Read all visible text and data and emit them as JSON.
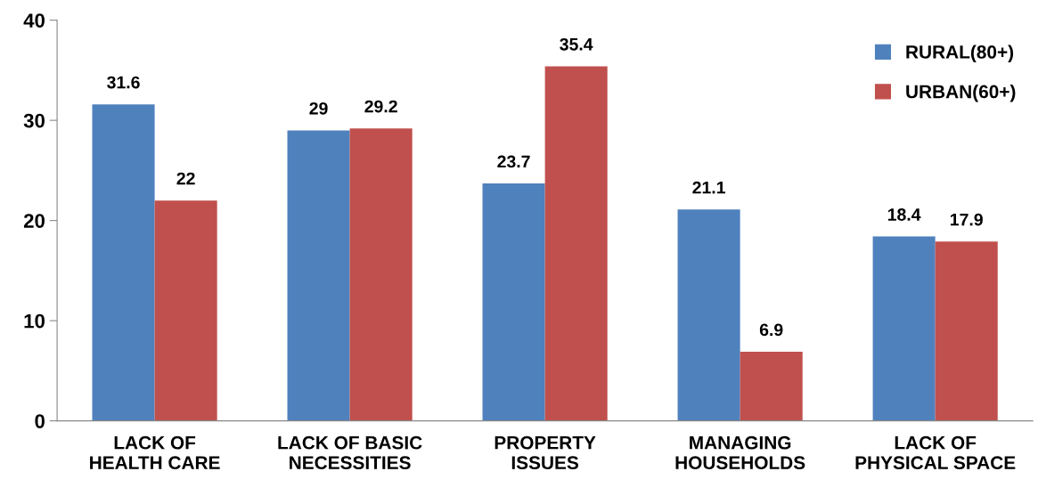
{
  "chart_data": {
    "type": "bar",
    "categories": [
      "LACK OF\nHEALTH CARE",
      "LACK OF BASIC\nNECESSITIES",
      "PROPERTY\nISSUES",
      "MANAGING\nHOUSEHOLDS",
      "LACK OF\nPHYSICAL SPACE"
    ],
    "series": [
      {
        "name": "RURAL(80+)",
        "color": "#4f81bd",
        "values": [
          31.6,
          29,
          23.7,
          21.1,
          18.4
        ]
      },
      {
        "name": "URBAN(60+)",
        "color": "#c0504d",
        "values": [
          22,
          29.2,
          35.4,
          6.9,
          17.9
        ]
      }
    ],
    "ylim": [
      0,
      40
    ],
    "yticks": [
      0,
      10,
      20,
      30,
      40
    ],
    "grid": false,
    "data_labels": true,
    "legend": "top right"
  }
}
